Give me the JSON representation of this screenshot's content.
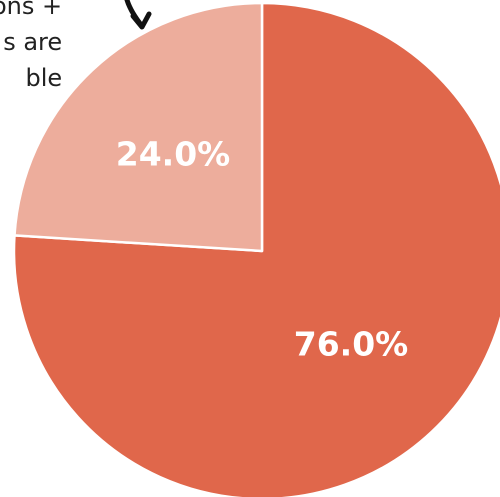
{
  "annotation": {
    "lines": [
      "ons +",
      "s are",
      "ble"
    ]
  },
  "chart_data": {
    "type": "pie",
    "start_angle_deg": 0,
    "direction": "clockwise",
    "slices": [
      {
        "value": 76.0,
        "label": "76.0%",
        "color": "#E0674B"
      },
      {
        "value": 24.0,
        "label": "24.0%",
        "color": "#EDAD9C"
      }
    ]
  }
}
